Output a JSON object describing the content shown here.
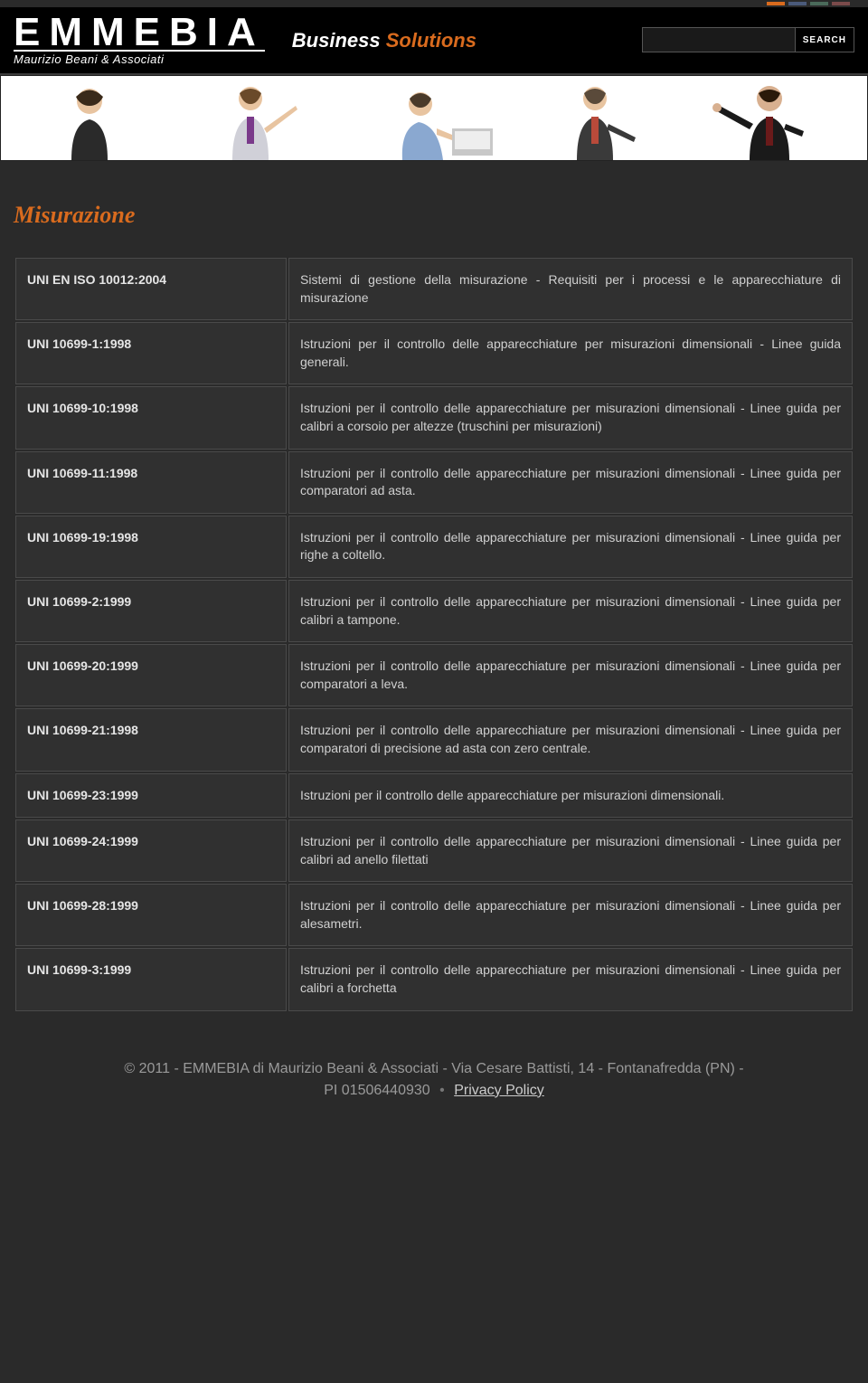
{
  "header": {
    "logo_main": "EMMEBIA",
    "logo_sub": "Maurizio Beani & Associati",
    "tagline_w1": "Business",
    "tagline_w2": "Solutions",
    "search_placeholder": "",
    "search_button": "SEARCH"
  },
  "page": {
    "title": "Misurazione"
  },
  "rows": [
    {
      "code": "UNI EN ISO 10012:2004",
      "desc": "Sistemi di gestione della misurazione - Requisiti per i processi e le apparecchiature di misurazione"
    },
    {
      "code": "UNI 10699-1:1998",
      "desc": "Istruzioni per il controllo delle apparecchiature per misurazioni dimensionali - Linee guida generali."
    },
    {
      "code": "UNI 10699-10:1998",
      "desc": "Istruzioni per il controllo delle apparecchiature per misurazioni dimensionali - Linee guida per calibri a corsoio per altezze (truschini per misurazioni)"
    },
    {
      "code": "UNI 10699-11:1998",
      "desc": "Istruzioni per il controllo delle apparecchiature per misurazioni dimensionali - Linee guida per comparatori ad asta."
    },
    {
      "code": "UNI 10699-19:1998",
      "desc": "Istruzioni per il controllo delle apparecchiature per misurazioni dimensionali - Linee guida per righe a coltello."
    },
    {
      "code": "UNI 10699-2:1999",
      "desc": "Istruzioni per il controllo delle apparecchiature per misurazioni dimensionali - Linee guida per calibri a tampone."
    },
    {
      "code": "UNI 10699-20:1999",
      "desc": "Istruzioni per il controllo delle apparecchiature per misurazioni dimensionali - Linee guida per comparatori a leva."
    },
    {
      "code": "UNI 10699-21:1998",
      "desc": "Istruzioni per il controllo delle apparecchiature per misurazioni dimensionali - Linee guida per comparatori di precisione ad asta con zero centrale."
    },
    {
      "code": "UNI 10699-23:1999",
      "desc": "Istruzioni per il controllo delle apparecchiature per misurazioni dimensionali."
    },
    {
      "code": "UNI 10699-24:1999",
      "desc": "Istruzioni per il controllo delle apparecchiature per misurazioni dimensionali - Linee guida per calibri ad anello filettati"
    },
    {
      "code": "UNI 10699-28:1999",
      "desc": "Istruzioni per il controllo delle apparecchiature per misurazioni dimensionali - Linee guida per alesametri."
    },
    {
      "code": "UNI 10699-3:1999",
      "desc": "Istruzioni per il controllo delle apparecchiature per misurazioni dimensionali - Linee guida per calibri a forchetta"
    }
  ],
  "footer": {
    "line1_a": "© 2011 - EMMEBIA di  Maurizio Beani & Associati - Via Cesare Battisti, 14 - Fontanafredda (PN)  -",
    "line2_a": "PI 01506440930",
    "privacy": "Privacy Policy"
  },
  "flags": {
    "f1": "#d96b1e",
    "f2": "#4a5a7a",
    "f3": "#4a6a5a",
    "f4": "#7a4a4a"
  }
}
